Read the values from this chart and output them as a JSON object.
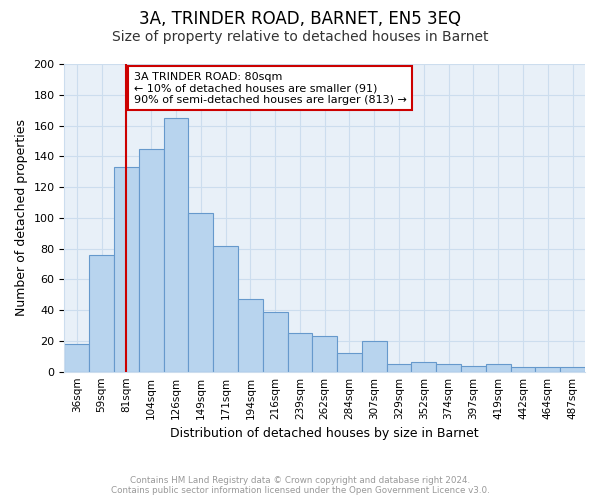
{
  "title": "3A, TRINDER ROAD, BARNET, EN5 3EQ",
  "subtitle": "Size of property relative to detached houses in Barnet",
  "xlabel": "Distribution of detached houses by size in Barnet",
  "ylabel": "Number of detached properties",
  "bar_labels": [
    "36sqm",
    "59sqm",
    "81sqm",
    "104sqm",
    "126sqm",
    "149sqm",
    "171sqm",
    "194sqm",
    "216sqm",
    "239sqm",
    "262sqm",
    "284sqm",
    "307sqm",
    "329sqm",
    "352sqm",
    "374sqm",
    "397sqm",
    "419sqm",
    "442sqm",
    "464sqm",
    "487sqm"
  ],
  "bar_values": [
    18,
    76,
    133,
    145,
    165,
    103,
    82,
    47,
    39,
    25,
    23,
    12,
    20,
    5,
    6,
    5,
    4,
    5,
    3,
    3,
    3
  ],
  "bar_color": "#b8d4ee",
  "bar_edge_color": "#6699cc",
  "vline_x_index": 2,
  "vline_color": "#cc0000",
  "annotation_text": "3A TRINDER ROAD: 80sqm\n← 10% of detached houses are smaller (91)\n90% of semi-detached houses are larger (813) →",
  "annotation_box_color": "#ffffff",
  "annotation_box_edge": "#cc0000",
  "ylim": [
    0,
    200
  ],
  "yticks": [
    0,
    20,
    40,
    60,
    80,
    100,
    120,
    140,
    160,
    180,
    200
  ],
  "grid_color": "#ccddee",
  "footer_line1": "Contains HM Land Registry data © Crown copyright and database right 2024.",
  "footer_line2": "Contains public sector information licensed under the Open Government Licence v3.0.",
  "bg_color": "#ffffff",
  "plot_bg_color": "#e8f0f8",
  "title_fontsize": 12,
  "subtitle_fontsize": 10,
  "xlabel_fontsize": 9,
  "ylabel_fontsize": 9
}
